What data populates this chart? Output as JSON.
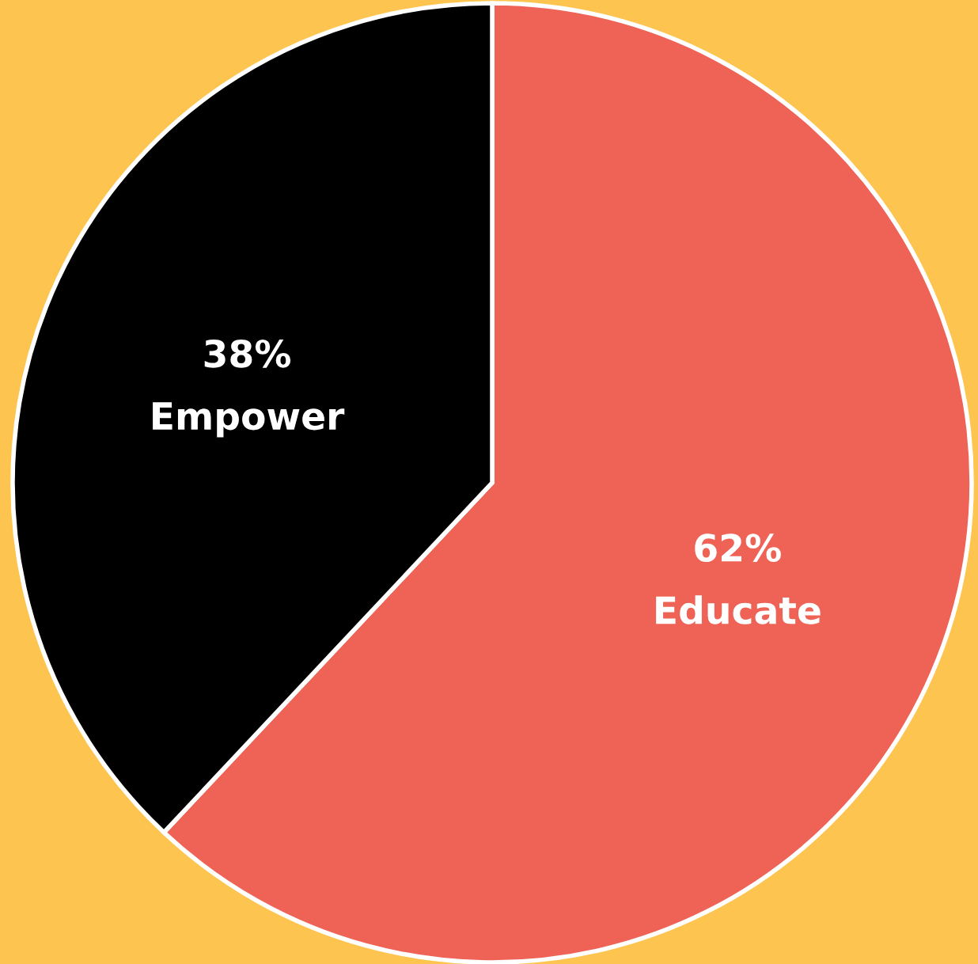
{
  "chart_data": {
    "type": "pie",
    "categories": [
      "Educate",
      "Empower"
    ],
    "values": [
      62,
      38
    ],
    "colors": [
      "#ef6356",
      "#000000"
    ],
    "value_labels": [
      "62%",
      "38%"
    ]
  }
}
